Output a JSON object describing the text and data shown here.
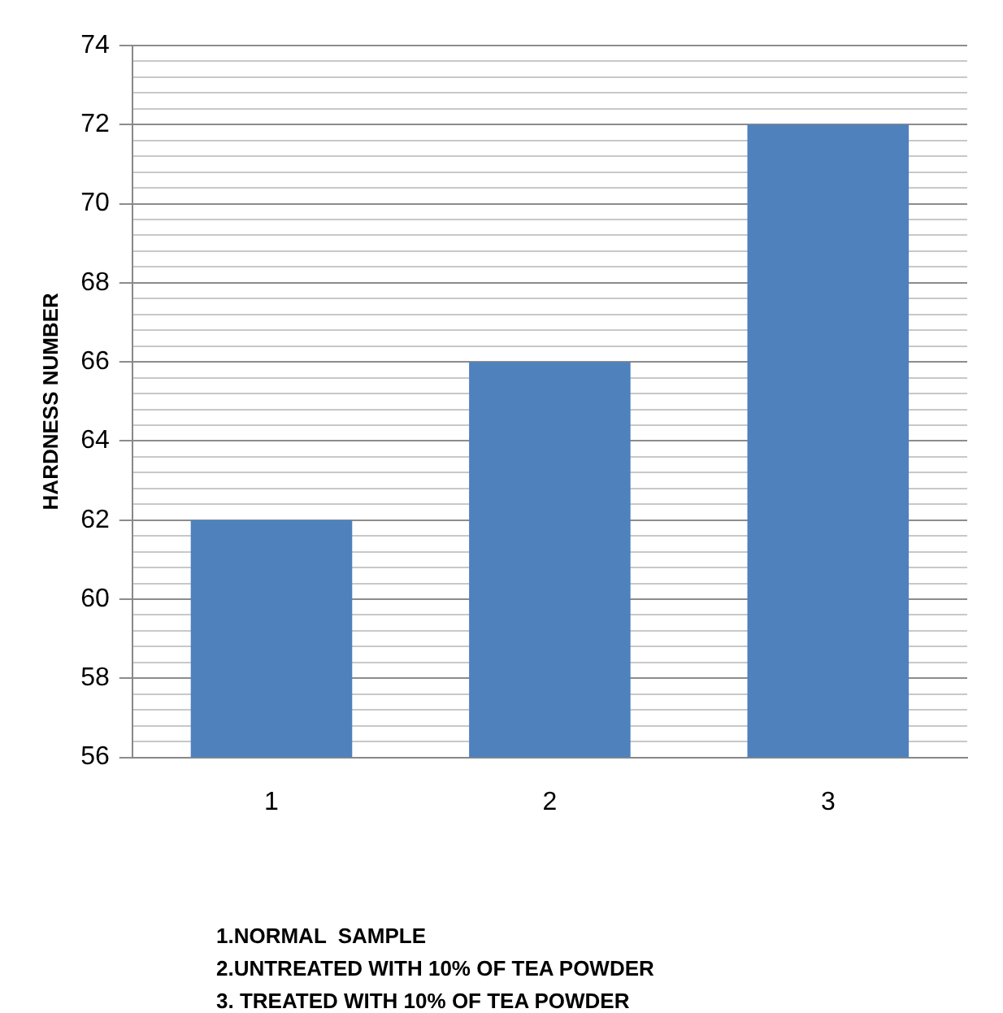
{
  "chart_data": {
    "type": "bar",
    "ylabel": "HARDNESS NUMBER",
    "categories": [
      "1",
      "2",
      "3"
    ],
    "values": [
      62,
      66,
      72
    ],
    "color": "#4f81bd",
    "ylim": [
      56,
      74
    ],
    "yticks": [
      56,
      {
        "value": 56.4,
        "label": null
      },
      {
        "value": 56.8,
        "label": null
      },
      {
        "value": 57.2,
        "label": null
      },
      {
        "value": 57.6,
        "label": null
      },
      58,
      {
        "value": 58.4,
        "label": null
      },
      {
        "value": 58.8,
        "label": null
      },
      {
        "value": 59.2,
        "label": null
      },
      {
        "value": 59.6,
        "label": null
      },
      60,
      {
        "value": 60.4,
        "label": null
      },
      {
        "value": 60.8,
        "label": null
      },
      {
        "value": 61.2,
        "label": null
      },
      {
        "value": 61.6,
        "label": null
      },
      62,
      {
        "value": 62.4,
        "label": null
      },
      {
        "value": 62.8,
        "label": null
      },
      {
        "value": 63.2,
        "label": null
      },
      {
        "value": 63.6,
        "label": null
      },
      64,
      {
        "value": 64.4,
        "label": null
      },
      {
        "value": 64.8,
        "label": null
      },
      {
        "value": 65.2,
        "label": null
      },
      {
        "value": 65.6,
        "label": null
      },
      66,
      {
        "value": 66.4,
        "label": null
      },
      {
        "value": 66.8,
        "label": null
      },
      {
        "value": 67.2,
        "label": null
      },
      {
        "value": 67.6,
        "label": null
      },
      68,
      {
        "value": 68.4,
        "label": null
      },
      {
        "value": 68.8,
        "label": null
      },
      {
        "value": 69.2,
        "label": null
      },
      {
        "value": 69.6,
        "label": null
      },
      70,
      {
        "value": 70.4,
        "label": null
      },
      {
        "value": 70.8,
        "label": null
      },
      {
        "value": 71.2,
        "label": null
      },
      {
        "value": 71.6,
        "label": null
      },
      72,
      {
        "value": 72.4,
        "label": null
      },
      {
        "value": 72.8,
        "label": null
      },
      {
        "value": 73.2,
        "label": null
      },
      {
        "value": 73.6,
        "label": null
      },
      74
    ],
    "grid": "y",
    "legend": false,
    "annotations": [
      "1.NORMAL  SAMPLE",
      "2.UNTREATED WITH 10% OF TEA POWDER",
      "3. TREATED WITH 10% OF TEA POWDER"
    ]
  }
}
